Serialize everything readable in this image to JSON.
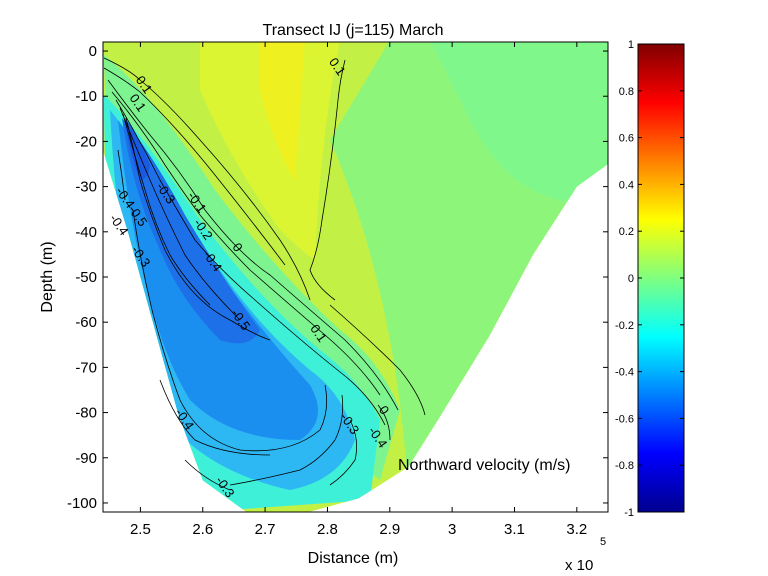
{
  "chart_data": {
    "type": "heatmap",
    "title": "Transect IJ  (j=115)  March",
    "xlabel": "Distance (m)",
    "ylabel": "Depth (m)",
    "x_exponent_label": "x 10",
    "x_exponent_power": "5",
    "annotation": "Northward velocity (m/s)",
    "xlim": [
      2.44,
      3.25
    ],
    "ylim": [
      -102,
      2
    ],
    "x_ticks": [
      "2.5",
      "2.6",
      "2.7",
      "2.8",
      "2.9",
      "3",
      "3.1",
      "3.2"
    ],
    "x_tick_values": [
      2.5,
      2.6,
      2.7,
      2.8,
      2.9,
      3.0,
      3.1,
      3.2
    ],
    "y_ticks": [
      "0",
      "-10",
      "-20",
      "-30",
      "-40",
      "-50",
      "-60",
      "-70",
      "-80",
      "-90",
      "-100"
    ],
    "y_tick_values": [
      0,
      -10,
      -20,
      -30,
      -40,
      -50,
      -60,
      -70,
      -80,
      -90,
      -100
    ],
    "colorbar": {
      "range": [
        -1,
        1
      ],
      "colormap": "jet",
      "ticks": [
        "1",
        "0.8",
        "0.6",
        "0.4",
        "0.2",
        "0",
        "-0.2",
        "-0.4",
        "-0.6",
        "-0.8",
        "-1"
      ],
      "tick_values": [
        1,
        0.8,
        0.6,
        0.4,
        0.2,
        0,
        -0.2,
        -0.4,
        -0.6,
        -0.8,
        -1
      ]
    },
    "domain_bottom": [
      {
        "x": 2.44,
        "y": -22
      },
      {
        "x": 2.48,
        "y": -40
      },
      {
        "x": 2.52,
        "y": -60
      },
      {
        "x": 2.56,
        "y": -80
      },
      {
        "x": 2.6,
        "y": -95
      },
      {
        "x": 2.67,
        "y": -102
      },
      {
        "x": 2.77,
        "y": -102
      },
      {
        "x": 2.85,
        "y": -99
      },
      {
        "x": 2.93,
        "y": -92
      },
      {
        "x": 2.98,
        "y": -81
      },
      {
        "x": 3.06,
        "y": -63
      },
      {
        "x": 3.13,
        "y": -45
      },
      {
        "x": 3.2,
        "y": -30
      },
      {
        "x": 3.25,
        "y": -25
      }
    ],
    "contour_labels": [
      {
        "text": "0.1",
        "x": 2.5,
        "y": -8
      },
      {
        "text": "0.1",
        "x": 2.49,
        "y": -12
      },
      {
        "text": "0.1",
        "x": 2.81,
        "y": -4
      },
      {
        "text": "0.1",
        "x": 2.78,
        "y": -63
      },
      {
        "text": "-0.4",
        "x": 2.47,
        "y": -33
      },
      {
        "text": "-0.4",
        "x": 2.46,
        "y": -39
      },
      {
        "text": "-0.5",
        "x": 2.49,
        "y": -37
      },
      {
        "text": "-0.3",
        "x": 2.495,
        "y": -46
      },
      {
        "text": "-0.3",
        "x": 2.535,
        "y": -32
      },
      {
        "text": "-0.1",
        "x": 2.585,
        "y": -34
      },
      {
        "text": "-0.2",
        "x": 2.595,
        "y": -40
      },
      {
        "text": "-0.4",
        "x": 2.61,
        "y": -47
      },
      {
        "text": "0",
        "x": 2.65,
        "y": -44
      },
      {
        "text": "-0.5",
        "x": 2.655,
        "y": -60
      },
      {
        "text": "-0.4",
        "x": 2.565,
        "y": -82
      },
      {
        "text": "-0.3",
        "x": 2.63,
        "y": -97
      },
      {
        "text": "-0.3",
        "x": 2.83,
        "y": -83
      },
      {
        "text": "-0.4",
        "x": 2.875,
        "y": -86
      },
      {
        "text": "0",
        "x": 2.885,
        "y": -80
      }
    ]
  }
}
